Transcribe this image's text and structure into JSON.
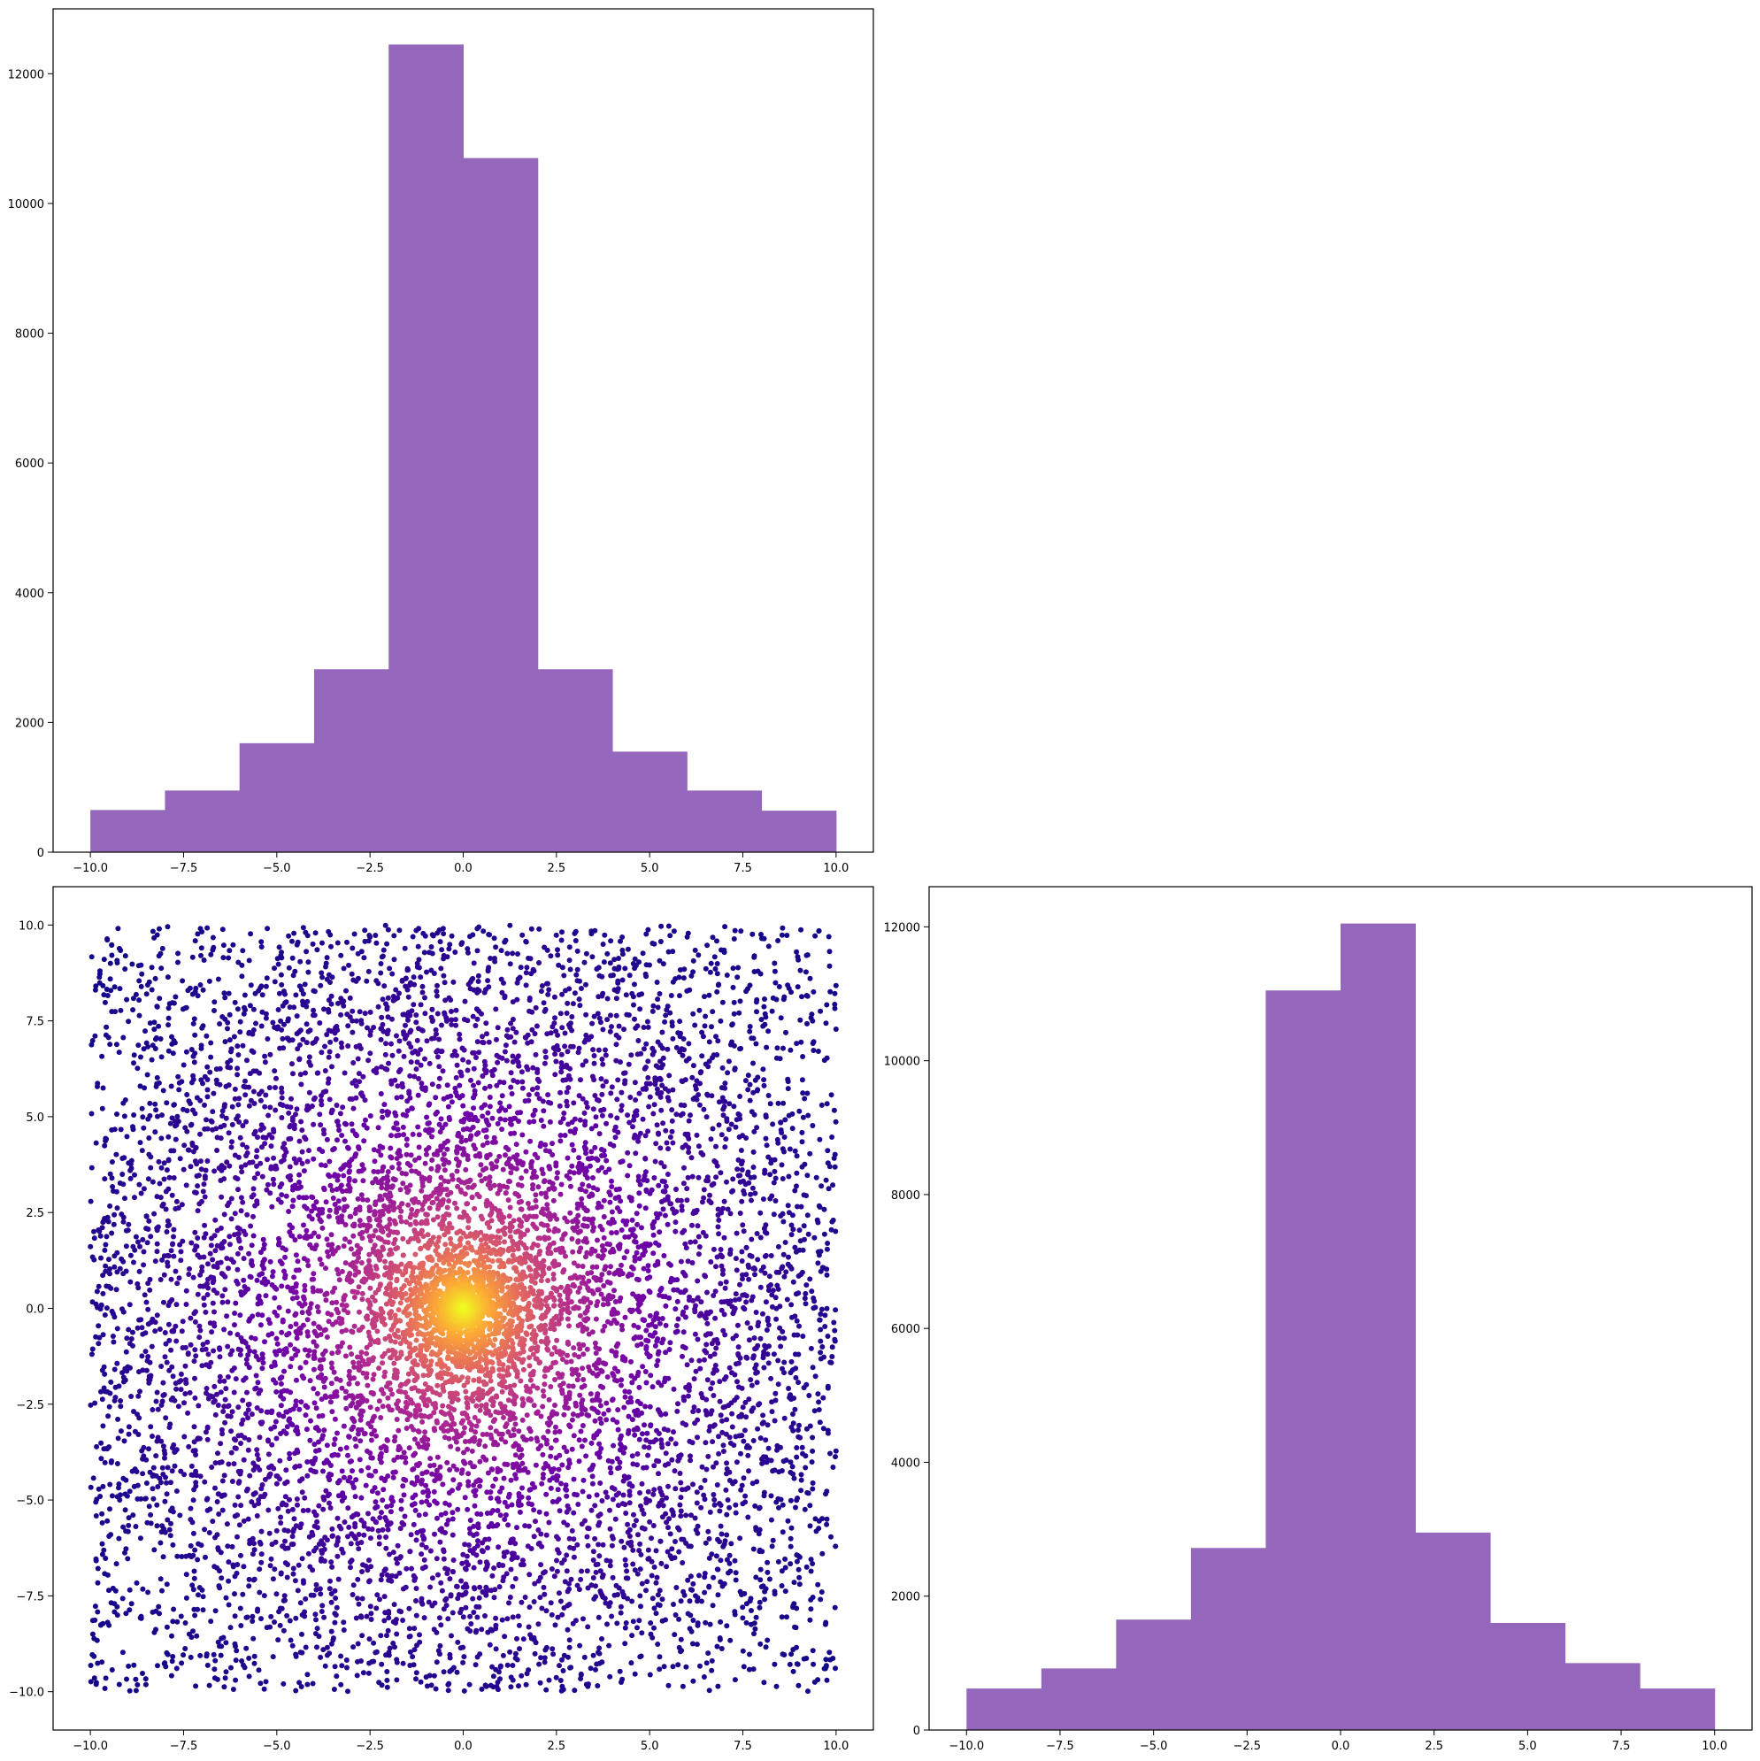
{
  "figure": {
    "background": "#ffffff"
  },
  "chart_data": [
    {
      "type": "bar",
      "panel": "top-left",
      "title": "",
      "xlabel": "",
      "ylabel": "",
      "bin_edges": [
        -10,
        -8,
        -6,
        -4,
        -2,
        0,
        2,
        4,
        6,
        8,
        10
      ],
      "values": [
        650,
        950,
        1680,
        2820,
        12450,
        10700,
        2820,
        1550,
        950,
        640
      ],
      "xlim": [
        -11,
        11
      ],
      "ylim": [
        0,
        13000
      ],
      "xticks": [
        -10,
        -7.5,
        -5,
        -2.5,
        0,
        2.5,
        5,
        7.5,
        10
      ],
      "xtick_labels": [
        "−10.0",
        "−7.5",
        "−5.0",
        "−2.5",
        "0.0",
        "2.5",
        "5.0",
        "7.5",
        "10.0"
      ],
      "yticks": [
        0,
        2000,
        4000,
        6000,
        8000,
        10000,
        12000
      ],
      "ytick_labels": [
        "0",
        "2000",
        "4000",
        "6000",
        "8000",
        "10000",
        "12000"
      ],
      "color": "#9467bd",
      "grid": false
    },
    {
      "type": "scatter",
      "panel": "bottom-left",
      "title": "",
      "xlabel": "",
      "ylabel": "",
      "x_range": [
        -10,
        10
      ],
      "y_range": [
        -10,
        10
      ],
      "point_count": 10000,
      "color_by": "density (distance from center)",
      "colormap": "plasma",
      "colormap_stops": [
        "#0d0887",
        "#6a00a8",
        "#b12a90",
        "#e16462",
        "#fca636",
        "#f0f921"
      ],
      "center": [
        0,
        0
      ],
      "xlim": [
        -11,
        11
      ],
      "ylim": [
        -11,
        11
      ],
      "xticks": [
        -10,
        -7.5,
        -5,
        -2.5,
        0,
        2.5,
        5,
        7.5,
        10
      ],
      "xtick_labels": [
        "−10.0",
        "−7.5",
        "−5.0",
        "−2.5",
        "0.0",
        "2.5",
        "5.0",
        "7.5",
        "10.0"
      ],
      "yticks": [
        -10,
        -7.5,
        -5,
        -2.5,
        0,
        2.5,
        5,
        7.5,
        10
      ],
      "ytick_labels": [
        "−10.0",
        "−7.5",
        "−5.0",
        "−2.5",
        "0.0",
        "2.5",
        "5.0",
        "7.5",
        "10.0"
      ],
      "grid": false
    },
    {
      "type": "bar",
      "panel": "bottom-right",
      "title": "",
      "xlabel": "",
      "ylabel": "",
      "bin_edges": [
        -10,
        -8,
        -6,
        -4,
        -2,
        0,
        2,
        4,
        6,
        8,
        10
      ],
      "values": [
        620,
        920,
        1650,
        2720,
        11050,
        12050,
        2950,
        1600,
        1000,
        620
      ],
      "xlim": [
        -11,
        11
      ],
      "ylim": [
        0,
        12600
      ],
      "xticks": [
        -10,
        -7.5,
        -5,
        -2.5,
        0,
        2.5,
        5,
        7.5,
        10
      ],
      "xtick_labels": [
        "−10.0",
        "−7.5",
        "−5.0",
        "−2.5",
        "0.0",
        "2.5",
        "5.0",
        "7.5",
        "10.0"
      ],
      "yticks": [
        0,
        2000,
        4000,
        6000,
        8000,
        10000,
        12000
      ],
      "ytick_labels": [
        "0",
        "2000",
        "4000",
        "6000",
        "8000",
        "10000",
        "12000"
      ],
      "color": "#9467bd",
      "grid": false
    }
  ]
}
